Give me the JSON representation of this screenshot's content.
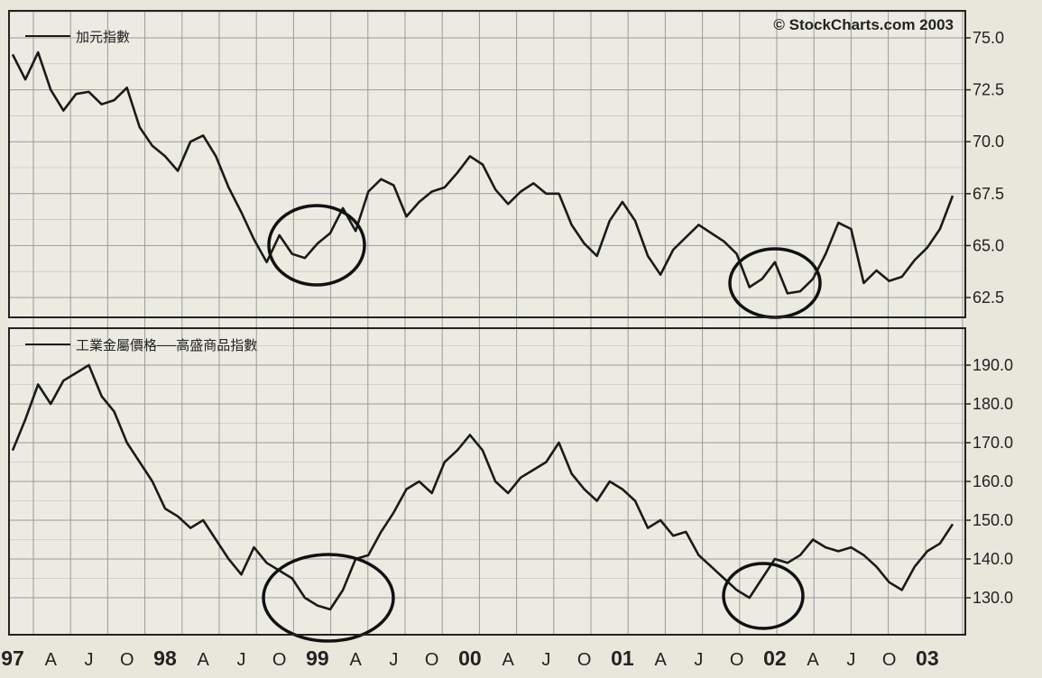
{
  "copyright": "© StockCharts.com 2003",
  "x_axis_labels": [
    "97",
    "A",
    "J",
    "O",
    "98",
    "A",
    "J",
    "O",
    "99",
    "A",
    "J",
    "O",
    "00",
    "A",
    "J",
    "O",
    "01",
    "A",
    "J",
    "O",
    "02",
    "A",
    "J",
    "O",
    "03"
  ],
  "colors": {
    "background": "#ecebe2",
    "grid": "#9a9a9a",
    "line": "#1a1a1a",
    "frame": "#222222"
  },
  "chart_data": [
    {
      "type": "line",
      "legend": "加元指數",
      "yticks": [
        "75.0",
        "72.5",
        "70.0",
        "67.5",
        "65.0",
        "62.5"
      ],
      "ylim": [
        61.5,
        75.5
      ],
      "grid": true,
      "x": [
        "1997-01",
        "1997-02",
        "1997-03",
        "1997-04",
        "1997-05",
        "1997-06",
        "1997-07",
        "1997-08",
        "1997-09",
        "1997-10",
        "1997-11",
        "1997-12",
        "1998-01",
        "1998-02",
        "1998-03",
        "1998-04",
        "1998-05",
        "1998-06",
        "1998-07",
        "1998-08",
        "1998-09",
        "1998-10",
        "1998-11",
        "1998-12",
        "1999-01",
        "1999-02",
        "1999-03",
        "1999-04",
        "1999-05",
        "1999-06",
        "1999-07",
        "1999-08",
        "1999-09",
        "1999-10",
        "1999-11",
        "1999-12",
        "2000-01",
        "2000-02",
        "2000-03",
        "2000-04",
        "2000-05",
        "2000-06",
        "2000-07",
        "2000-08",
        "2000-09",
        "2000-10",
        "2000-11",
        "2000-12",
        "2001-01",
        "2001-02",
        "2001-03",
        "2001-04",
        "2001-05",
        "2001-06",
        "2001-07",
        "2001-08",
        "2001-09",
        "2001-10",
        "2001-11",
        "2001-12",
        "2002-01",
        "2002-02",
        "2002-03",
        "2002-04",
        "2002-05",
        "2002-06",
        "2002-07",
        "2002-08",
        "2002-09",
        "2002-10",
        "2002-11",
        "2002-12",
        "2003-01",
        "2003-02",
        "2003-03"
      ],
      "values": [
        74.2,
        73.0,
        74.3,
        72.5,
        71.5,
        72.3,
        72.4,
        71.8,
        72.0,
        72.6,
        70.7,
        69.8,
        69.3,
        68.6,
        70.0,
        70.3,
        69.3,
        67.8,
        66.6,
        65.3,
        64.2,
        65.5,
        64.6,
        64.4,
        65.1,
        65.6,
        66.8,
        65.7,
        67.6,
        68.2,
        67.9,
        66.4,
        67.1,
        67.6,
        67.8,
        68.5,
        69.3,
        68.9,
        67.7,
        67.0,
        67.6,
        68.0,
        67.5,
        67.5,
        66.0,
        65.1,
        64.5,
        66.2,
        67.1,
        66.2,
        64.5,
        63.6,
        64.8,
        65.4,
        66.0,
        65.6,
        65.2,
        64.6,
        63.0,
        63.4,
        64.2,
        62.7,
        62.8,
        63.4,
        64.6,
        66.1,
        65.8,
        63.2,
        63.8,
        63.3,
        63.5,
        64.3,
        64.9,
        65.8,
        67.4
      ]
    },
    {
      "type": "line",
      "legend": "工業金屬價格──高盛商品指數",
      "yticks": [
        "190.0",
        "180.0",
        "170.0",
        "160.0",
        "150.0",
        "140.0",
        "130.0"
      ],
      "ylim": [
        122,
        198
      ],
      "grid": true,
      "x": [
        "1997-01",
        "1997-02",
        "1997-03",
        "1997-04",
        "1997-05",
        "1997-06",
        "1997-07",
        "1997-08",
        "1997-09",
        "1997-10",
        "1997-11",
        "1997-12",
        "1998-01",
        "1998-02",
        "1998-03",
        "1998-04",
        "1998-05",
        "1998-06",
        "1998-07",
        "1998-08",
        "1998-09",
        "1998-10",
        "1998-11",
        "1998-12",
        "1999-01",
        "1999-02",
        "1999-03",
        "1999-04",
        "1999-05",
        "1999-06",
        "1999-07",
        "1999-08",
        "1999-09",
        "1999-10",
        "1999-11",
        "1999-12",
        "2000-01",
        "2000-02",
        "2000-03",
        "2000-04",
        "2000-05",
        "2000-06",
        "2000-07",
        "2000-08",
        "2000-09",
        "2000-10",
        "2000-11",
        "2000-12",
        "2001-01",
        "2001-02",
        "2001-03",
        "2001-04",
        "2001-05",
        "2001-06",
        "2001-07",
        "2001-08",
        "2001-09",
        "2001-10",
        "2001-11",
        "2001-12",
        "2002-01",
        "2002-02",
        "2002-03",
        "2002-04",
        "2002-05",
        "2002-06",
        "2002-07",
        "2002-08",
        "2002-09",
        "2002-10",
        "2002-11",
        "2002-12",
        "2003-01",
        "2003-02",
        "2003-03"
      ],
      "values": [
        168,
        176,
        185,
        180,
        186,
        188,
        190,
        182,
        178,
        170,
        165,
        160,
        153,
        151,
        148,
        150,
        145,
        140,
        136,
        143,
        139,
        137,
        135,
        130,
        128,
        127,
        132,
        140,
        141,
        147,
        152,
        158,
        160,
        157,
        165,
        168,
        172,
        168,
        160,
        157,
        161,
        163,
        165,
        170,
        162,
        158,
        155,
        160,
        158,
        155,
        148,
        150,
        146,
        147,
        141,
        138,
        135,
        132,
        130,
        135,
        140,
        139,
        141,
        145,
        143,
        142,
        143,
        141,
        138,
        134,
        132,
        138,
        142,
        144,
        149
      ]
    }
  ]
}
